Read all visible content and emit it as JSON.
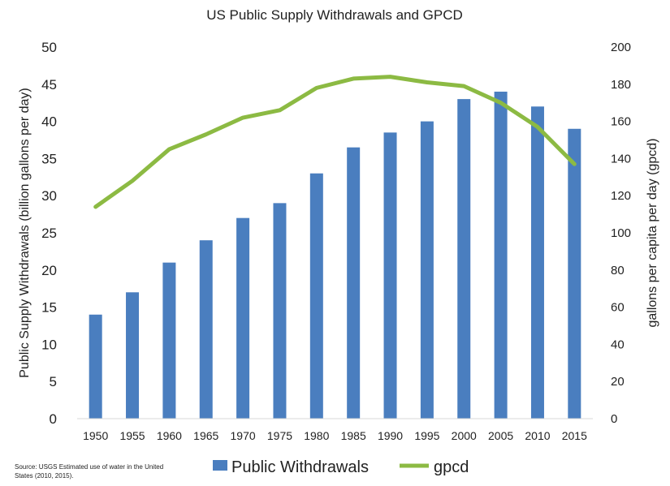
{
  "chart_data": {
    "type": "bar",
    "title": "US Public Supply Withdrawals and GPCD",
    "categories": [
      "1950",
      "1955",
      "1960",
      "1965",
      "1970",
      "1975",
      "1980",
      "1985",
      "1990",
      "1995",
      "2000",
      "2005",
      "2010",
      "2015"
    ],
    "series": [
      {
        "name": "Public Withdrawals",
        "type": "bar",
        "axis": "left",
        "values": [
          14,
          17,
          21,
          24,
          27,
          29,
          33,
          36.5,
          38.5,
          40,
          43,
          44,
          42,
          39
        ]
      },
      {
        "name": "gpcd",
        "type": "line",
        "axis": "right",
        "values": [
          114,
          128,
          145,
          153,
          162,
          166,
          178,
          183,
          184,
          181,
          179,
          170,
          157,
          137
        ]
      }
    ],
    "ylabel": "Public Supply Withdrawals (billion gallons per day)",
    "y2label": "gallons per capita per day (gpcd)",
    "ylim": [
      0,
      50
    ],
    "y2lim": [
      0,
      200
    ],
    "yticks": [
      "0",
      "5",
      "10",
      "15",
      "20",
      "25",
      "30",
      "35",
      "40",
      "45",
      "50"
    ],
    "y2ticks": [
      "0",
      "20",
      "40",
      "60",
      "80",
      "100",
      "120",
      "140",
      "160",
      "180",
      "200"
    ],
    "colors": {
      "bar": "#4a7ebf",
      "line": "#8cba43"
    },
    "grid": false,
    "legend_position": "bottom",
    "source": [
      "Source: USGS Estimated use of water in the United",
      "States (2010, 2015)."
    ]
  }
}
